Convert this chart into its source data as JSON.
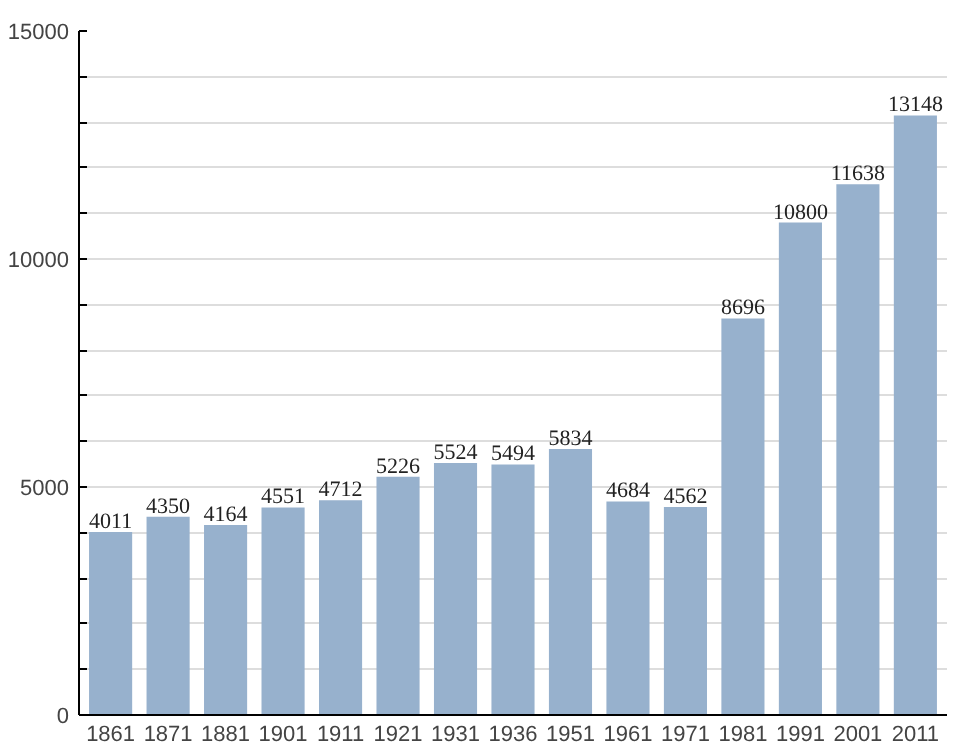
{
  "chart_data": {
    "type": "bar",
    "categories": [
      "1861",
      "1871",
      "1881",
      "1901",
      "1911",
      "1921",
      "1931",
      "1936",
      "1951",
      "1961",
      "1971",
      "1981",
      "1991",
      "2001",
      "2011"
    ],
    "values": [
      4011,
      4350,
      4164,
      4551,
      4712,
      5226,
      5524,
      5494,
      5834,
      4684,
      4562,
      8696,
      10800,
      11638,
      13148
    ],
    "color": "#97b1cd",
    "ylim": [
      0,
      15000
    ],
    "yticks": [
      0,
      {
        "value": 1000,
        "label": null
      },
      {
        "value": 2000,
        "label": null
      },
      {
        "value": 3000,
        "label": null
      },
      {
        "value": 4000,
        "label": null
      },
      5000,
      {
        "value": 6000,
        "label": null
      },
      {
        "value": 7000,
        "label": null
      },
      {
        "value": 8000,
        "label": null
      },
      {
        "value": 9000,
        "label": null
      },
      10000,
      {
        "value": 11000,
        "label": null
      },
      {
        "value": 12000,
        "label": null
      },
      {
        "value": 13000,
        "label": null
      },
      {
        "value": 14000,
        "label": null
      },
      15000
    ],
    "grid": "y",
    "data_labels": true
  }
}
